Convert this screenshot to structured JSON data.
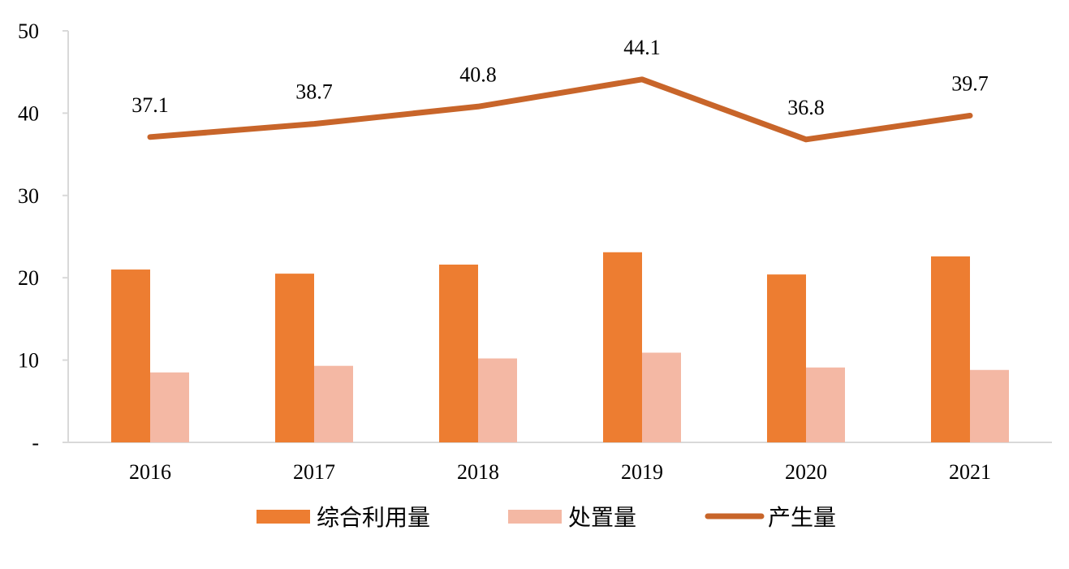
{
  "chart_data": {
    "type": "bar+line",
    "categories": [
      "2016",
      "2017",
      "2018",
      "2019",
      "2020",
      "2021"
    ],
    "ylim": [
      0,
      50
    ],
    "yticks": [
      "-",
      "10",
      "20",
      "30",
      "40",
      "50"
    ],
    "grid": false,
    "legend_position": "bottom",
    "series": [
      {
        "name": "综合利用量",
        "type": "bar",
        "color": "#ED7D31",
        "values": [
          21.0,
          20.5,
          21.6,
          23.1,
          20.4,
          22.6
        ]
      },
      {
        "name": "处置量",
        "type": "bar",
        "color": "#F4B8A4",
        "values": [
          8.5,
          9.3,
          10.2,
          10.9,
          9.1,
          8.8
        ]
      },
      {
        "name": "产生量",
        "type": "line",
        "color": "#C8652A",
        "values": [
          37.1,
          38.7,
          40.8,
          44.1,
          36.8,
          39.7
        ],
        "data_labels": [
          "37.1",
          "38.7",
          "40.8",
          "44.1",
          "36.8",
          "39.7"
        ]
      }
    ]
  }
}
